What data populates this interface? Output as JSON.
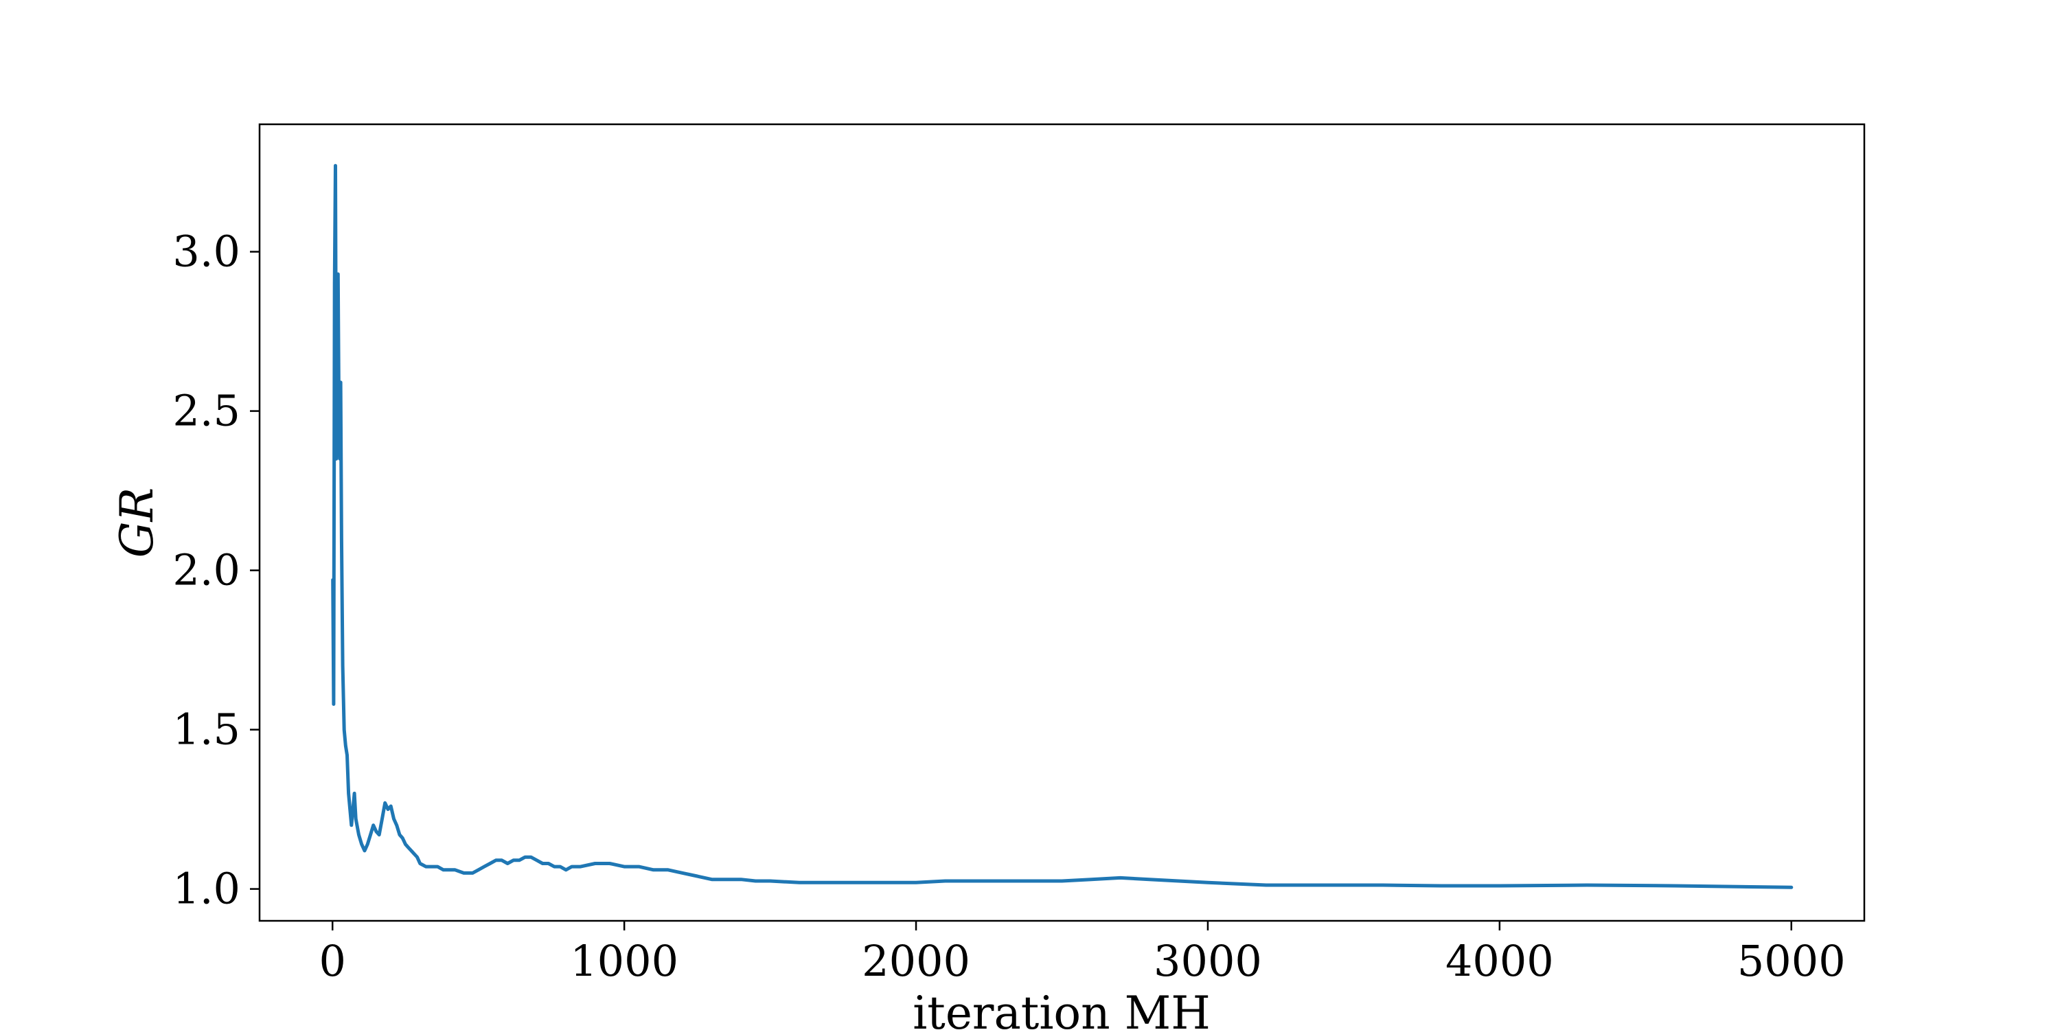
{
  "chart_data": {
    "type": "line",
    "title": "",
    "xlabel": "iteration MH",
    "ylabel": "GR",
    "xlim": [
      -250,
      5250
    ],
    "ylim": [
      0.9,
      3.4
    ],
    "xticks": [
      0,
      1000,
      2000,
      3000,
      4000,
      5000
    ],
    "xtick_labels": [
      "0",
      "1000",
      "2000",
      "3000",
      "4000",
      "5000"
    ],
    "yticks": [
      1.0,
      1.5,
      2.0,
      2.5,
      3.0
    ],
    "ytick_labels": [
      "1.0",
      "1.5",
      "2.0",
      "2.5",
      "3.0"
    ],
    "grid": false,
    "line_color": "#1f77b4",
    "series": [
      {
        "x": [
          1,
          4,
          7,
          10,
          13,
          16,
          19,
          22,
          25,
          28,
          31,
          35,
          40,
          45,
          50,
          55,
          60,
          65,
          70,
          75,
          80,
          90,
          100,
          110,
          120,
          130,
          140,
          150,
          160,
          170,
          180,
          190,
          200,
          210,
          220,
          230,
          240,
          250,
          260,
          270,
          280,
          290,
          300,
          320,
          340,
          360,
          380,
          400,
          420,
          450,
          480,
          500,
          520,
          540,
          560,
          580,
          600,
          620,
          640,
          660,
          680,
          700,
          720,
          740,
          760,
          780,
          800,
          820,
          850,
          900,
          950,
          1000,
          1050,
          1100,
          1150,
          1200,
          1250,
          1300,
          1350,
          1400,
          1450,
          1500,
          1600,
          1700,
          1800,
          1900,
          2000,
          2100,
          2200,
          2300,
          2400,
          2500,
          2600,
          2700,
          2800,
          2900,
          3000,
          3200,
          3400,
          3600,
          3800,
          4000,
          4300,
          4600,
          5000
        ],
        "y": [
          1.97,
          1.58,
          2.9,
          3.27,
          2.35,
          2.85,
          2.93,
          2.5,
          2.35,
          2.59,
          2.1,
          1.7,
          1.5,
          1.45,
          1.42,
          1.3,
          1.25,
          1.2,
          1.25,
          1.3,
          1.22,
          1.17,
          1.14,
          1.12,
          1.14,
          1.17,
          1.2,
          1.18,
          1.17,
          1.22,
          1.27,
          1.25,
          1.26,
          1.22,
          1.2,
          1.17,
          1.16,
          1.14,
          1.13,
          1.12,
          1.11,
          1.1,
          1.08,
          1.07,
          1.07,
          1.07,
          1.06,
          1.06,
          1.06,
          1.05,
          1.05,
          1.06,
          1.07,
          1.08,
          1.09,
          1.09,
          1.08,
          1.09,
          1.09,
          1.1,
          1.1,
          1.09,
          1.08,
          1.08,
          1.07,
          1.07,
          1.06,
          1.07,
          1.07,
          1.08,
          1.08,
          1.07,
          1.07,
          1.06,
          1.06,
          1.05,
          1.04,
          1.03,
          1.03,
          1.03,
          1.025,
          1.025,
          1.02,
          1.02,
          1.02,
          1.02,
          1.02,
          1.025,
          1.025,
          1.025,
          1.025,
          1.025,
          1.03,
          1.035,
          1.03,
          1.025,
          1.02,
          1.012,
          1.012,
          1.012,
          1.01,
          1.01,
          1.012,
          1.01,
          1.005
        ]
      }
    ]
  }
}
